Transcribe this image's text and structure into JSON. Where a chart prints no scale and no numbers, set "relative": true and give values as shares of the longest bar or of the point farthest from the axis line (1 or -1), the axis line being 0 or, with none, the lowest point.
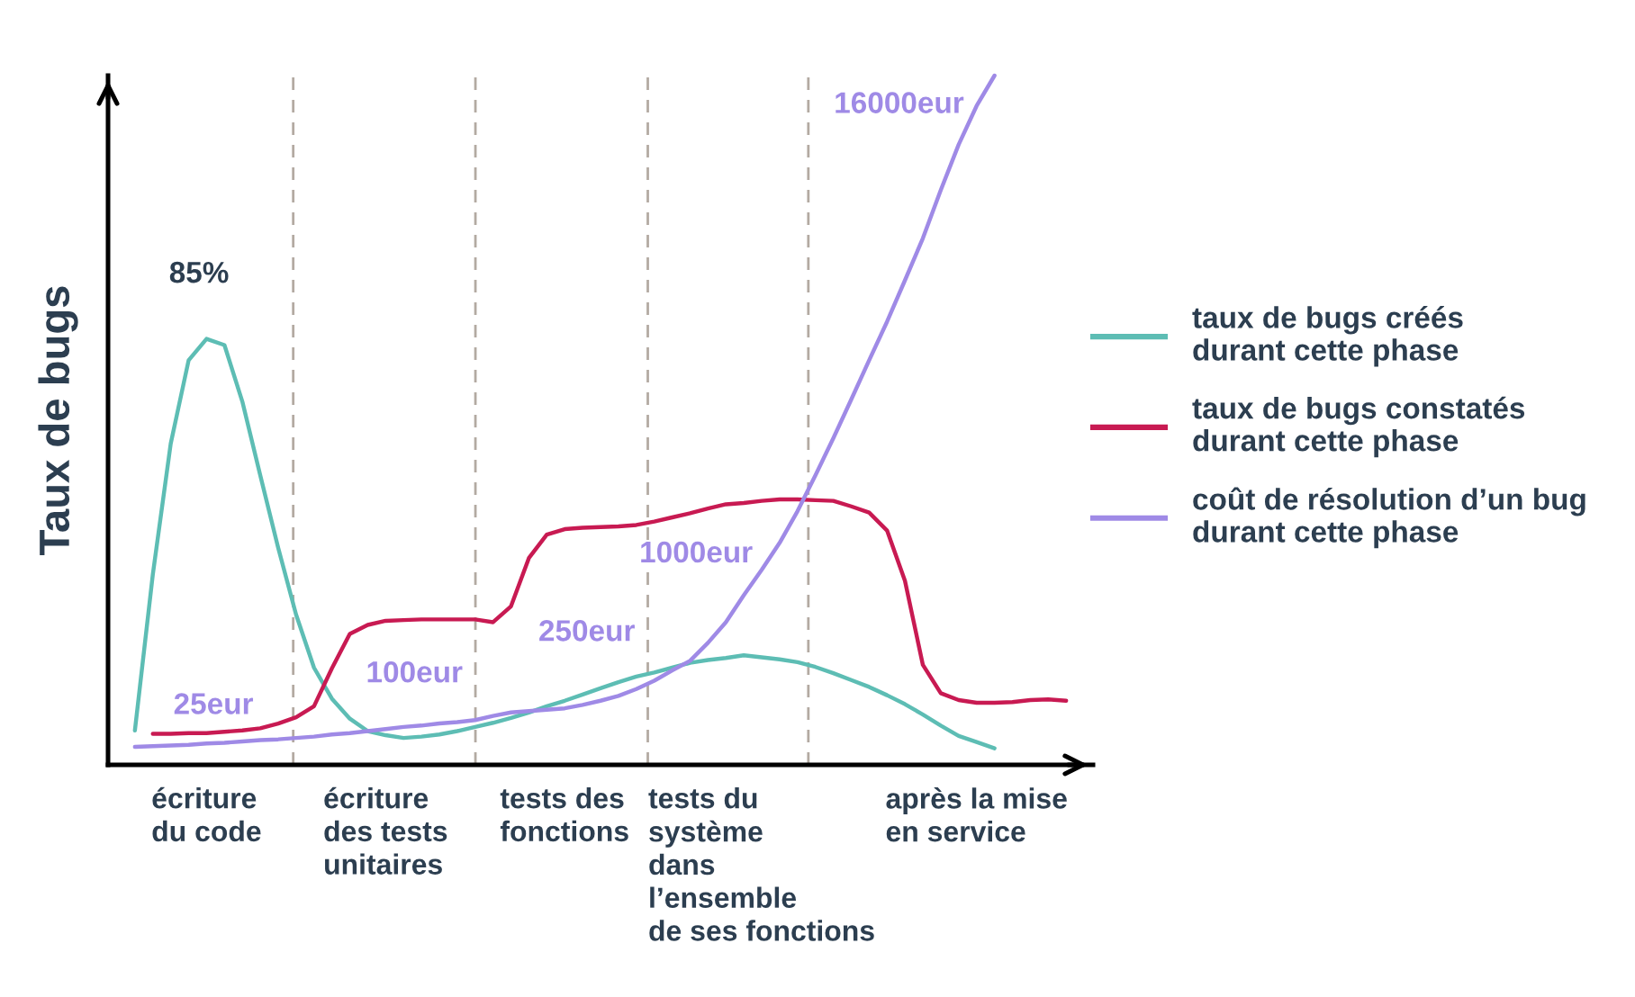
{
  "chart_data": {
    "type": "line",
    "relative": true,
    "ylabel": "Taux de bugs",
    "categories": [
      null,
      null,
      null,
      null,
      null,
      "écriture\ndu code",
      null,
      null,
      null,
      null,
      null,
      null,
      null,
      null,
      null,
      "écriture\ndes tests\nunitaires",
      null,
      null,
      null,
      null,
      null,
      null,
      null,
      null,
      null,
      "tests des\nfonctions",
      null,
      null,
      null,
      null,
      null,
      null,
      null,
      null,
      null,
      null,
      "tests du\nsystème\ndans\nl’ensemble\nde ses fonctions",
      null,
      null,
      null,
      null,
      null,
      null,
      null,
      null,
      null,
      null,
      null,
      "après la mise\nen service",
      null,
      null,
      null,
      null,
      null,
      null
    ],
    "tick_labels": "x",
    "legend": "right",
    "annotations": [
      {
        "text": "85%",
        "x": "écriture\ndu code",
        "y": 0.618
      },
      "25eur",
      "100eur",
      "250eur",
      "1000eur",
      "16000eur"
    ],
    "series": [
      {
        "name": "taux de bugs créés\ndurant cette phase",
        "color": "#5dbdb4",
        "values": [
          null,
          0.05,
          0.276,
          0.466,
          0.587,
          0.618,
          0.609,
          0.527,
          0.42,
          0.315,
          0.218,
          0.141,
          0.096,
          0.067,
          0.049,
          0.043,
          0.039,
          0.041,
          0.044,
          0.049,
          0.055,
          0.061,
          0.068,
          0.076,
          0.085,
          0.093,
          0.102,
          0.111,
          0.12,
          0.128,
          0.134,
          0.141,
          0.148,
          0.152,
          0.155,
          0.159,
          0.156,
          0.153,
          0.149,
          0.142,
          0.133,
          0.123,
          0.113,
          0.101,
          0.088,
          0.073,
          0.057,
          0.042,
          0.033,
          0.024,
          null,
          null,
          null,
          null,
          null
        ]
      },
      {
        "name": "taux de bugs constatés\ndurant cette phase",
        "color": "#c81a52",
        "values": [
          null,
          null,
          0.045,
          0.045,
          0.046,
          0.046,
          0.048,
          0.05,
          0.053,
          0.06,
          0.069,
          0.085,
          0.14,
          0.19,
          0.203,
          0.209,
          0.21,
          0.211,
          0.211,
          0.211,
          0.211,
          0.207,
          0.23,
          0.3,
          0.334,
          0.342,
          0.344,
          0.345,
          0.346,
          0.348,
          0.353,
          0.359,
          0.365,
          0.372,
          0.378,
          0.38,
          0.383,
          0.385,
          0.385,
          0.384,
          0.383,
          0.375,
          0.366,
          0.34,
          0.267,
          0.145,
          0.104,
          0.094,
          0.09,
          0.09,
          0.091,
          0.094,
          0.095,
          0.093,
          null
        ]
      },
      {
        "name": "coût de résolution d’un bug\ndurant cette phase",
        "color": "#9f8ae6",
        "values": [
          null,
          0.026,
          0.027,
          0.028,
          0.029,
          0.031,
          0.032,
          0.034,
          0.036,
          0.037,
          0.039,
          0.041,
          0.044,
          0.046,
          0.049,
          0.052,
          0.055,
          0.057,
          0.06,
          0.062,
          0.065,
          0.071,
          0.076,
          0.078,
          0.08,
          0.082,
          0.087,
          0.093,
          0.1,
          0.11,
          0.122,
          0.137,
          0.151,
          0.177,
          0.207,
          0.246,
          0.283,
          0.322,
          0.368,
          0.42,
          0.474,
          0.53,
          0.587,
          0.643,
          0.703,
          0.764,
          0.834,
          0.9,
          0.956,
          1.0,
          null,
          null,
          null,
          null,
          null
        ]
      }
    ]
  }
}
